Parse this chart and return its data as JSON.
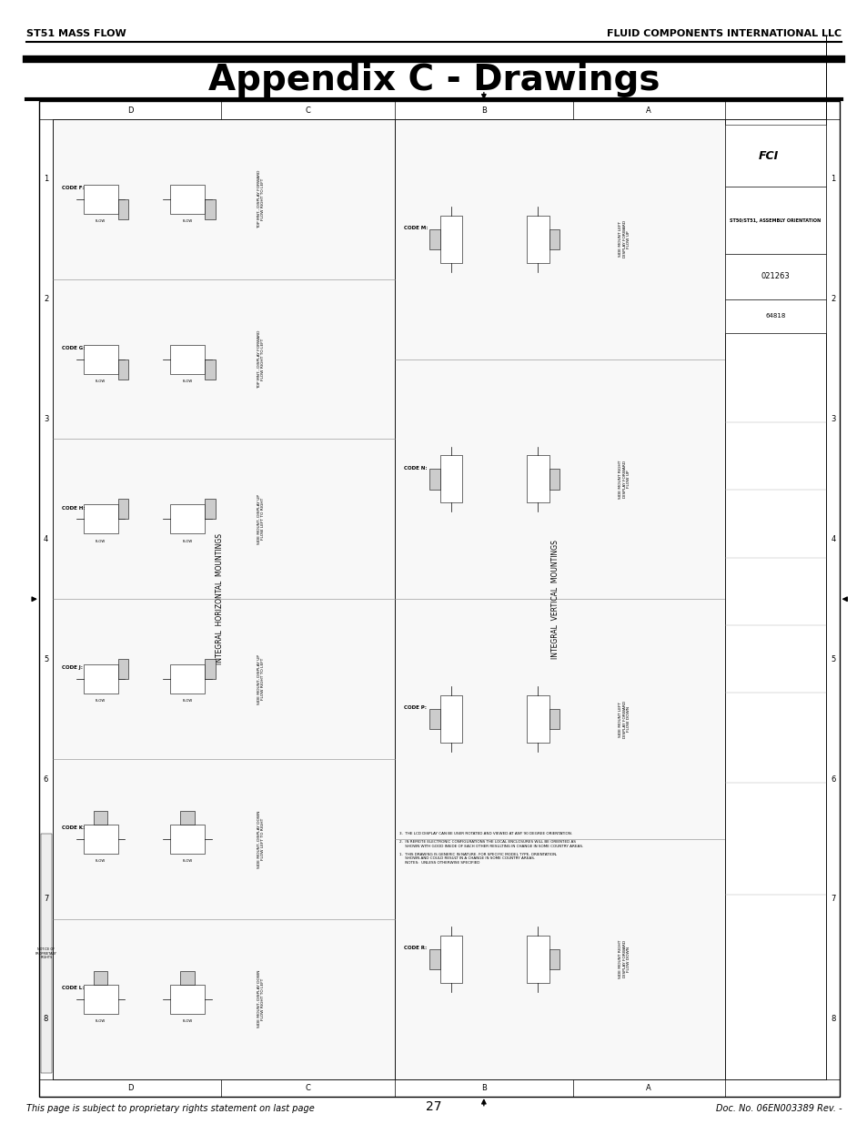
{
  "page_width": 9.54,
  "page_height": 12.35,
  "bg_color": "#ffffff",
  "header_left": "ST51 MASS FLOW",
  "header_right": "FLUID COMPONENTS INTERNATIONAL LLC",
  "header_font_size": 8,
  "title": "Appendix C - Drawings",
  "title_font_size": 28,
  "footer_left": "This page is subject to proprietary rights statement on last page",
  "footer_center": "27",
  "footer_right": "Doc. No. 06EN003389 Rev. -",
  "footer_font_size": 7,
  "col_labels": [
    "D",
    "C",
    "B",
    "A"
  ],
  "row_labels": [
    "1",
    "2",
    "3",
    "4",
    "5",
    "6",
    "7",
    "8"
  ],
  "integral_horiz_label": "INTEGRAL  HORIZONTAL  MOUNTINGS",
  "integral_vert_label": "INTEGRAL  VERTICAL  MOUNTINGS",
  "title_block_text": [
    "ST50/ST51, ASSEMBLY ORIENTATION",
    "021263",
    "64818"
  ]
}
